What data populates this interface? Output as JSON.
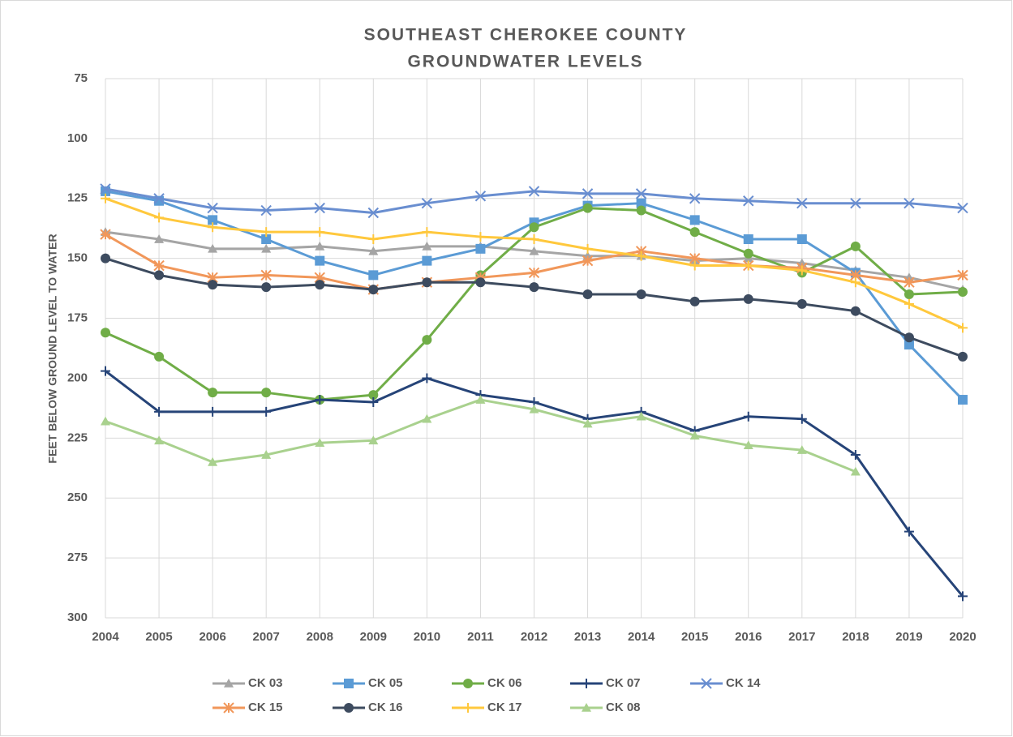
{
  "chart_data": {
    "type": "line",
    "title": [
      "SOUTHEAST CHEROKEE COUNTY",
      "GROUNDWATER LEVELS"
    ],
    "y_label": "FEET BELOW GROUND LEVEL TO WATER",
    "x": [
      2004,
      2005,
      2006,
      2007,
      2008,
      2009,
      2010,
      2011,
      2012,
      2013,
      2014,
      2015,
      2016,
      2017,
      2018,
      2019,
      2020
    ],
    "xlim": [
      2004,
      2020
    ],
    "xticks": [
      2004,
      2005,
      2006,
      2007,
      2008,
      2009,
      2010,
      2011,
      2012,
      2013,
      2014,
      2015,
      2016,
      2017,
      2018,
      2019,
      2020
    ],
    "ylim": [
      75,
      300
    ],
    "yticks": [
      75,
      100,
      125,
      150,
      175,
      200,
      225,
      250,
      275,
      300
    ],
    "y_inverted": true,
    "grid": true,
    "legend": "bottom",
    "series": [
      {
        "name": "CK 03",
        "color": "#a5a5a5",
        "marker": "triangle",
        "values": [
          139,
          142,
          146,
          146,
          145,
          147,
          145,
          145,
          147,
          149,
          149,
          151,
          150,
          152,
          155,
          158,
          163
        ]
      },
      {
        "name": "CK 05",
        "color": "#5b9bd5",
        "marker": "square",
        "values": [
          122,
          126,
          134,
          142,
          151,
          157,
          151,
          146,
          135,
          128,
          127,
          134,
          142,
          142,
          156,
          186,
          209
        ]
      },
      {
        "name": "CK 06",
        "color": "#70ad47",
        "marker": "circle",
        "values": [
          181,
          191,
          206,
          206,
          209,
          207,
          184,
          157,
          137,
          129,
          130,
          139,
          148,
          156,
          145,
          165,
          164
        ]
      },
      {
        "name": "CK 07",
        "color": "#264478",
        "marker": "plus",
        "values": [
          197,
          214,
          214,
          214,
          209,
          210,
          200,
          207,
          210,
          217,
          214,
          222,
          216,
          217,
          232,
          264,
          291
        ]
      },
      {
        "name": "CK 14",
        "color": "#698ed0",
        "marker": "x",
        "values": [
          121,
          125,
          129,
          130,
          129,
          131,
          127,
          124,
          122,
          123,
          123,
          125,
          126,
          127,
          127,
          127,
          129
        ]
      },
      {
        "name": "CK 15",
        "color": "#f1975a",
        "marker": "asterisk",
        "values": [
          140,
          153,
          158,
          157,
          158,
          163,
          160,
          158,
          156,
          151,
          147,
          150,
          153,
          154,
          157,
          160,
          157
        ]
      },
      {
        "name": "CK 16",
        "color": "#3d4b5f",
        "marker": "circle",
        "values": [
          150,
          157,
          161,
          162,
          161,
          163,
          160,
          160,
          162,
          165,
          165,
          168,
          167,
          169,
          172,
          183,
          191
        ]
      },
      {
        "name": "CK 17",
        "color": "#ffc83d",
        "marker": "plus",
        "values": [
          125,
          133,
          137,
          139,
          139,
          142,
          139,
          141,
          142,
          146,
          149,
          153,
          153,
          155,
          160,
          169,
          179
        ]
      },
      {
        "name": "CK 08",
        "color": "#a9d18e",
        "marker": "triangle",
        "values": [
          218,
          226,
          235,
          232,
          227,
          226,
          217,
          209,
          213,
          219,
          216,
          224,
          228,
          230,
          239,
          null,
          null
        ]
      }
    ]
  }
}
